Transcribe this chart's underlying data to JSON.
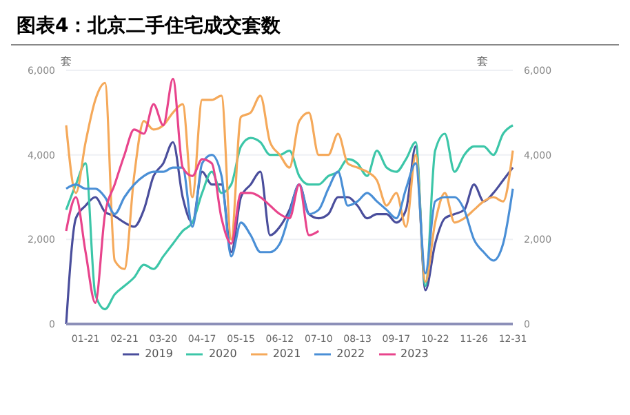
{
  "chart_data": {
    "type": "line",
    "title": "图表4：北京二手住宅成交套数",
    "ylabel": "套",
    "y2label": "套",
    "categories": [
      null,
      null,
      "01-21",
      null,
      null,
      null,
      "02-21",
      null,
      null,
      null,
      "03-20",
      null,
      null,
      null,
      "04-17",
      null,
      null,
      null,
      "05-15",
      null,
      null,
      null,
      "06-12",
      null,
      null,
      null,
      "07-10",
      null,
      null,
      null,
      "08-13",
      null,
      null,
      null,
      "09-17",
      null,
      null,
      null,
      "10-22",
      null,
      null,
      null,
      "11-26",
      null,
      null,
      null,
      "12-31"
    ],
    "series": [
      {
        "name": "2019",
        "color": "#4a4e9c",
        "values": [
          0,
          2500,
          2800,
          3000,
          2650,
          2550,
          2400,
          2300,
          2700,
          3500,
          3800,
          4300,
          3000,
          2400,
          3600,
          3300,
          3300,
          1700,
          3000,
          3300,
          3600,
          2100,
          2300,
          2700,
          3300,
          2600,
          2500,
          2600,
          3000,
          3000,
          2800,
          2500,
          2600,
          2600,
          2400,
          2700,
          4200,
          800,
          1900,
          2500,
          2600,
          2700,
          3300,
          2900,
          3100,
          3400,
          3700
        ]
      },
      {
        "name": "2020",
        "color": "#3cc6a8",
        "values": [
          2700,
          3300,
          3800,
          700,
          350,
          700,
          900,
          1100,
          1400,
          1300,
          1600,
          1900,
          2200,
          2400,
          3100,
          3600,
          3100,
          3300,
          4200,
          4400,
          4300,
          4000,
          4000,
          4100,
          3500,
          3300,
          3300,
          3500,
          3600,
          3900,
          3800,
          3500,
          4100,
          3700,
          3600,
          3900,
          4300,
          900,
          4100,
          4500,
          3600,
          4000,
          4200,
          4200,
          4000,
          4500,
          4700
        ]
      },
      {
        "name": "2021",
        "color": "#f5a95a",
        "values": [
          4700,
          3100,
          4300,
          5300,
          5700,
          1500,
          1300,
          3500,
          4800,
          4600,
          4700,
          5000,
          5200,
          3000,
          5300,
          5300,
          5400,
          2000,
          4900,
          5000,
          5400,
          4300,
          4000,
          3700,
          4800,
          5000,
          4000,
          4000,
          4500,
          3800,
          3700,
          3600,
          3400,
          2800,
          3100,
          2300,
          4000,
          1000,
          2400,
          3100,
          2400,
          2500,
          2700,
          2900,
          3000,
          2900,
          4100
        ]
      },
      {
        "name": "2022",
        "color": "#4a8fd6",
        "values": [
          3200,
          3300,
          3200,
          3200,
          3000,
          2600,
          3000,
          3300,
          3500,
          3600,
          3600,
          3700,
          3700,
          2300,
          3800,
          4000,
          3500,
          1600,
          2400,
          2100,
          1700,
          1700,
          1900,
          2600,
          3300,
          2600,
          2700,
          3200,
          3600,
          2800,
          2900,
          3100,
          2900,
          2700,
          2500,
          3200,
          3800,
          1200,
          2900,
          3000,
          3000,
          2700,
          2000,
          1700,
          1500,
          1900,
          3200
        ]
      },
      {
        "name": "2023",
        "color": "#e8448c",
        "values": [
          2200,
          3000,
          1700,
          500,
          2600,
          3300,
          4000,
          4600,
          4500,
          5200,
          4700,
          5800,
          3700,
          3500,
          3900,
          3800,
          2500,
          1900,
          3100,
          3100,
          3000,
          2800,
          2600,
          2500,
          3300,
          2100,
          2200,
          null,
          null,
          null,
          null,
          null,
          null,
          null,
          null,
          null,
          null,
          null,
          null,
          null,
          null,
          null,
          null,
          null,
          null,
          null,
          null
        ]
      }
    ],
    "ylim": [
      0,
      6000
    ],
    "yticks": [
      0,
      {
        "value": 2000,
        "label": "2,000"
      },
      {
        "value": 4000,
        "label": "4,000"
      },
      {
        "value": 6000,
        "label": "6,000"
      }
    ],
    "y2lim": [
      0,
      6000
    ],
    "y2ticks": [
      0,
      {
        "value": 2000,
        "label": "2,000"
      },
      {
        "value": 4000,
        "label": "4,000"
      },
      {
        "value": 6000,
        "label": "6,000"
      }
    ],
    "grid": "y",
    "legend": "bottom",
    "marker": "none",
    "line_style": "solid"
  }
}
